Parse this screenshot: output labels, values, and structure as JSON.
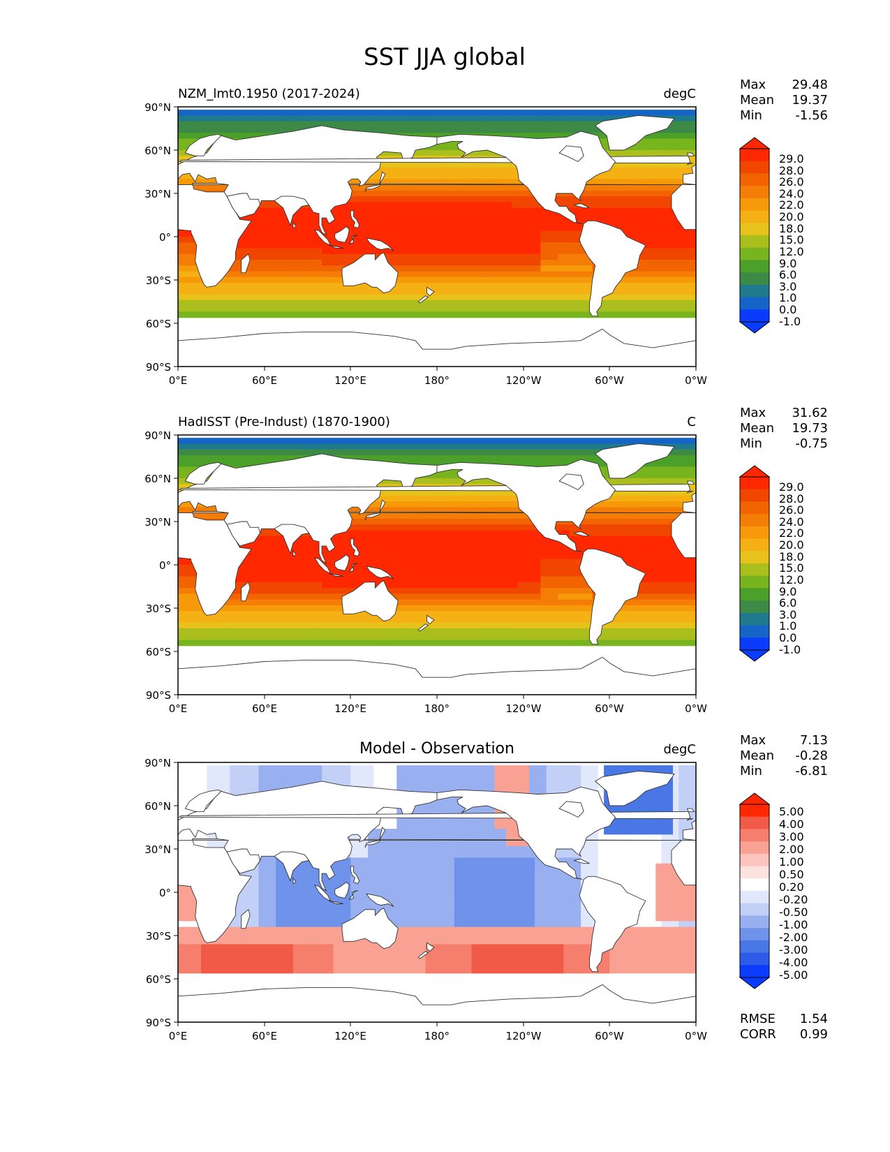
{
  "title": "SST JJA global",
  "axes": {
    "lat_labels": [
      "90°N",
      "60°N",
      "30°N",
      "0°",
      "30°S",
      "60°S",
      "90°S"
    ],
    "lon_labels": [
      "0°E",
      "60°E",
      "120°E",
      "180°",
      "120°W",
      "60°W",
      "0°W"
    ]
  },
  "colors": {
    "abs": [
      "#0a3cff",
      "#1565c8",
      "#1e7a8c",
      "#3c8a46",
      "#4aa028",
      "#78b41e",
      "#aabf1e",
      "#e6c21a",
      "#f5b014",
      "#f79a0a",
      "#f47d05",
      "#f26400",
      "#f04600",
      "#ff2800"
    ],
    "diff": [
      "#0a3cff",
      "#2d5ae6",
      "#4a77e6",
      "#6f92ea",
      "#99b0f0",
      "#c2cff6",
      "#e2e8fb",
      "#ffffff",
      "#fde3e0",
      "#fcc4bc",
      "#f9a193",
      "#f67e6c",
      "#f05a46",
      "#ff2800"
    ],
    "land": "#ffffff",
    "coast": "#333333"
  },
  "panels": [
    {
      "left_title": "NZM_lmt0.1950 (2017-2024)",
      "center_title": "",
      "units": "degC",
      "stats": [
        {
          "label": "Max",
          "value": "29.48"
        },
        {
          "label": "Mean",
          "value": "19.37"
        },
        {
          "label": "Min",
          "value": "-1.56"
        }
      ],
      "colorbar_type": "abs",
      "colorbar_labels": [
        "29.0",
        "28.0",
        "26.0",
        "24.0",
        "22.0",
        "20.0",
        "18.0",
        "15.0",
        "12.0",
        "9.0",
        "6.0",
        "3.0",
        "1.0",
        "0.0",
        "-1.0"
      ],
      "ice_edge_lat": -56,
      "extra_stats": []
    },
    {
      "left_title": "HadISST (Pre-Indust) (1870-1900)",
      "center_title": "",
      "units": "C",
      "stats": [
        {
          "label": "Max",
          "value": "31.62"
        },
        {
          "label": "Mean",
          "value": "19.73"
        },
        {
          "label": "Min",
          "value": "-0.75"
        }
      ],
      "colorbar_type": "abs",
      "colorbar_labels": [
        "29.0",
        "28.0",
        "26.0",
        "24.0",
        "22.0",
        "20.0",
        "18.0",
        "15.0",
        "12.0",
        "9.0",
        "6.0",
        "3.0",
        "1.0",
        "0.0",
        "-1.0"
      ],
      "ice_edge_lat": -54,
      "extra_stats": []
    },
    {
      "left_title": "",
      "center_title": "Model - Observation",
      "units": "degC",
      "stats": [
        {
          "label": "Max",
          "value": "7.13"
        },
        {
          "label": "Mean",
          "value": "-0.28"
        },
        {
          "label": "Min",
          "value": "-6.81"
        }
      ],
      "colorbar_type": "diff",
      "colorbar_labels": [
        "5.00",
        "4.00",
        "3.00",
        "2.00",
        "1.00",
        "0.50",
        "0.20",
        "-0.20",
        "-0.50",
        "-1.00",
        "-2.00",
        "-3.00",
        "-4.00",
        "-5.00"
      ],
      "ice_edge_lat": -56,
      "extra_stats": [
        {
          "label": "RMSE",
          "value": "1.54"
        },
        {
          "label": "CORR",
          "value": "0.99"
        }
      ]
    }
  ]
}
